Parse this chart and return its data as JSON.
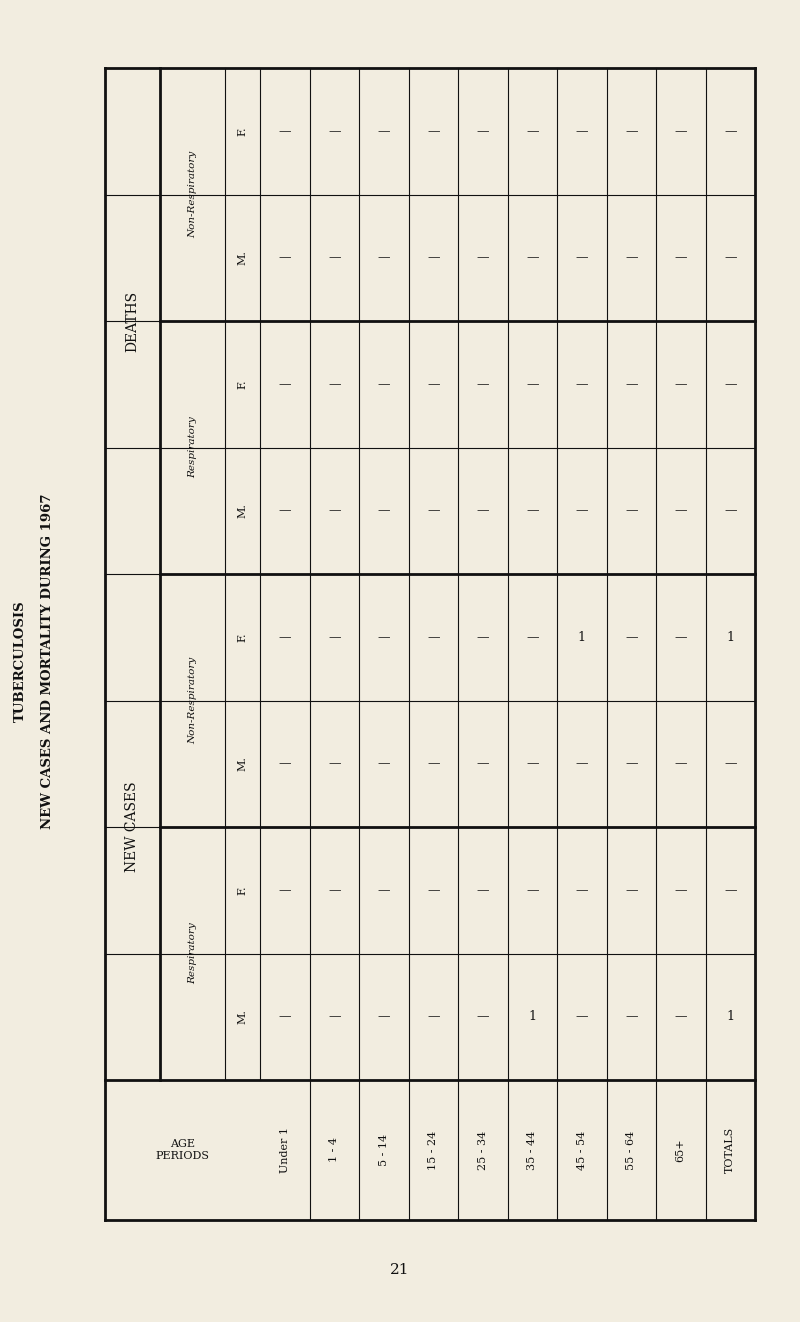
{
  "title_line1": "TUBERCULOSIS",
  "title_line2": "NEW CASES AND MORTALITY DURING 1967",
  "page_number": "21",
  "age_periods": [
    "Under 1",
    "1 - 4",
    "5 - 14",
    "15 - 24",
    "25 - 34",
    "35 - 44",
    "45 - 54",
    "55 - 64",
    "65+",
    "TOTALS"
  ],
  "row_structure": [
    {
      "group": "DEATHS",
      "subgroup": "Non-Respiratory",
      "mf": "F."
    },
    {
      "group": "DEATHS",
      "subgroup": "Non-Respiratory",
      "mf": "M."
    },
    {
      "group": "DEATHS",
      "subgroup": "Respiratory",
      "mf": "F."
    },
    {
      "group": "DEATHS",
      "subgroup": "Respiratory",
      "mf": "M."
    },
    {
      "group": "NEW CASES",
      "subgroup": "Non-Respiratory",
      "mf": "F."
    },
    {
      "group": "NEW CASES",
      "subgroup": "Non-Respiratory",
      "mf": "M."
    },
    {
      "group": "NEW CASES",
      "subgroup": "Respiratory",
      "mf": "F."
    },
    {
      "group": "NEW CASES",
      "subgroup": "Respiratory",
      "mf": "M."
    }
  ],
  "data": [
    [
      "—",
      "—",
      "—",
      "—",
      "—",
      "—",
      "—",
      "—",
      "—",
      "—"
    ],
    [
      "—",
      "—",
      "—",
      "—",
      "—",
      "—",
      "—",
      "—",
      "—",
      "—"
    ],
    [
      "—",
      "—",
      "—",
      "—",
      "—",
      "—",
      "—",
      "—",
      "—",
      "—"
    ],
    [
      "—",
      "—",
      "—",
      "—",
      "—",
      "—",
      "—",
      "—",
      "—",
      "—"
    ],
    [
      "—",
      "—",
      "—",
      "—",
      "—",
      "—",
      "1",
      "—",
      "—",
      "1"
    ],
    [
      "—",
      "—",
      "—",
      "—",
      "—",
      "—",
      "—",
      "—",
      "—",
      "—"
    ],
    [
      "—",
      "—",
      "—",
      "—",
      "—",
      "—",
      "—",
      "—",
      "—",
      "—"
    ],
    [
      "—",
      "—",
      "—",
      "—",
      "—",
      "1",
      "—",
      "—",
      "—",
      "1"
    ]
  ],
  "background_color": "#f2ede0",
  "text_color": "#111111",
  "line_color": "#111111"
}
